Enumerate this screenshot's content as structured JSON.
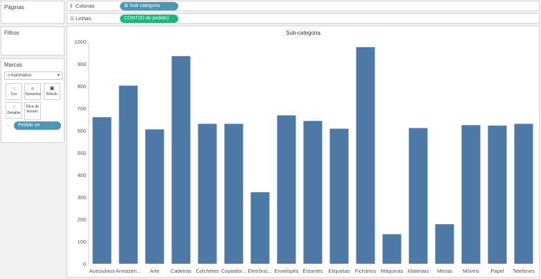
{
  "sidebar": {
    "pages_title": "Páginas",
    "filters_title": "Filtros",
    "marks_title": "Marcas",
    "mark_type": "Automático",
    "mark_buttons": [
      {
        "label": "Cor",
        "icon": "color-dots-icon"
      },
      {
        "label": "Tamanho",
        "icon": "size-icon"
      },
      {
        "label": "Rótulo",
        "icon": "label-icon"
      },
      {
        "label": "Detalhe",
        "icon": "detail-icon"
      },
      {
        "label": "Dica de ferram.",
        "icon": "tooltip-icon"
      }
    ],
    "detail_pill": "Pedido on"
  },
  "shelves": {
    "columns_label": "Colunas",
    "columns_pill": "Sub-categoria",
    "rows_label": "Linhas",
    "rows_pill": "CONT(ID do pedido)"
  },
  "chart_data": {
    "type": "bar",
    "title": "Sub-categoria",
    "categories": [
      "Acessórios",
      "Armazen...",
      "Arte",
      "Cadeiras",
      "Colchetes",
      "Copiador...",
      "Eletrônic...",
      "Envelopes",
      "Estantes",
      "Etiquetas",
      "Fichários",
      "Máquinas",
      "Materiais",
      "Mesas",
      "Móveis",
      "Papel",
      "Telefones"
    ],
    "values": [
      660,
      802,
      605,
      935,
      630,
      630,
      322,
      668,
      643,
      608,
      975,
      133,
      611,
      178,
      624,
      622,
      630
    ],
    "yticks": [
      "0",
      "100",
      "200",
      "300",
      "400",
      "500",
      "600",
      "700",
      "800",
      "900",
      "1000"
    ],
    "ylim": [
      0,
      1000
    ],
    "bar_color": "#4e79a7",
    "grid": false
  }
}
